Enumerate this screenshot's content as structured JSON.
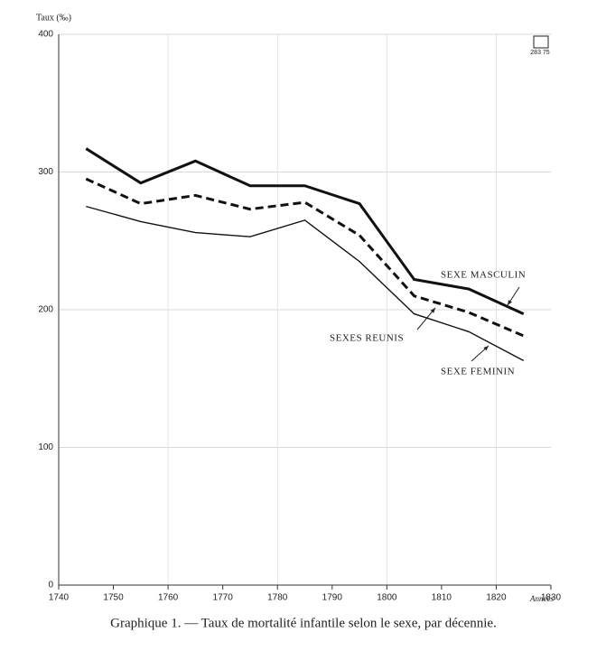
{
  "chart_data": {
    "type": "line",
    "y_label": "Taux (‰)",
    "x_label": "Années",
    "caption": "Graphique 1. — Taux de mortalité infantile selon le sexe, par décennie.",
    "logo_code": "283 75",
    "x": [
      1745,
      1755,
      1765,
      1775,
      1785,
      1795,
      1805,
      1815,
      1825
    ],
    "series": [
      {
        "name": "SEXE MASCULIN",
        "color": "#111",
        "width": 3,
        "dash": "none",
        "values": [
          317,
          292,
          308,
          290,
          290,
          277,
          222,
          215,
          197
        ]
      },
      {
        "name": "SEXES REUNIS",
        "color": "#111",
        "width": 3,
        "dash": "9 5",
        "values": [
          295,
          277,
          283,
          273,
          278,
          254,
          210,
          198,
          181
        ]
      },
      {
        "name": "SEXE FEMININ",
        "color": "#111",
        "width": 1.4,
        "dash": "none",
        "values": [
          275,
          264,
          256,
          253,
          265,
          235,
          197,
          184,
          163
        ]
      }
    ],
    "xlim": [
      1740,
      1830
    ],
    "xticks": [
      1740,
      1750,
      1760,
      1770,
      1780,
      1790,
      1800,
      1810,
      1820,
      1830
    ],
    "ylim": [
      0,
      400
    ],
    "yticks": [
      0,
      100,
      200,
      300,
      400
    ],
    "grid": true
  }
}
